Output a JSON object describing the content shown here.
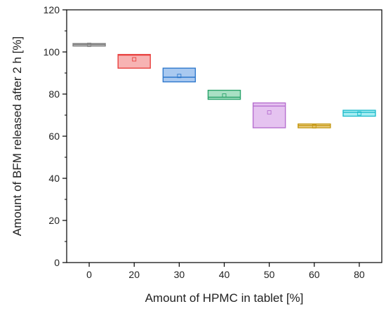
{
  "chart_data": {
    "type": "box",
    "xlabel": "Amount of HPMC in tablet [%]",
    "ylabel": "Amount of BFM released after 2 h [%]",
    "ylim": [
      0,
      120
    ],
    "yticks": [
      0,
      20,
      40,
      60,
      80,
      100,
      120
    ],
    "categories": [
      "0",
      "20",
      "30",
      "40",
      "50",
      "60",
      "80"
    ],
    "boxes": [
      {
        "category": "0",
        "q1": 102.8,
        "median": 103.5,
        "q3": 104.0,
        "mean": 103.4,
        "color": "#808080",
        "fill": "#d9d9d9"
      },
      {
        "category": "20",
        "q1": 92.3,
        "median": 98.5,
        "q3": 98.8,
        "mean": 96.5,
        "color": "#e8413f",
        "fill": "#f7b3b3"
      },
      {
        "category": "30",
        "q1": 85.8,
        "median": 88.0,
        "q3": 92.3,
        "mean": 88.6,
        "color": "#2e78cc",
        "fill": "#a9c9f0"
      },
      {
        "category": "40",
        "q1": 77.5,
        "median": 78.5,
        "q3": 81.8,
        "mean": 79.3,
        "color": "#2aa36b",
        "fill": "#a9e0c4"
      },
      {
        "category": "50",
        "q1": 64.0,
        "median": 74.3,
        "q3": 75.8,
        "mean": 71.3,
        "color": "#b66fcf",
        "fill": "#e5c3f0"
      },
      {
        "category": "60",
        "q1": 64.0,
        "median": 65.0,
        "q3": 65.8,
        "mean": 64.7,
        "color": "#c4960f",
        "fill": "#f0d99a"
      },
      {
        "category": "80",
        "q1": 69.5,
        "median": 71.3,
        "q3": 72.3,
        "mean": 70.8,
        "color": "#1fbccb",
        "fill": "#a8eef3"
      }
    ],
    "grid": false,
    "legend": "none"
  }
}
